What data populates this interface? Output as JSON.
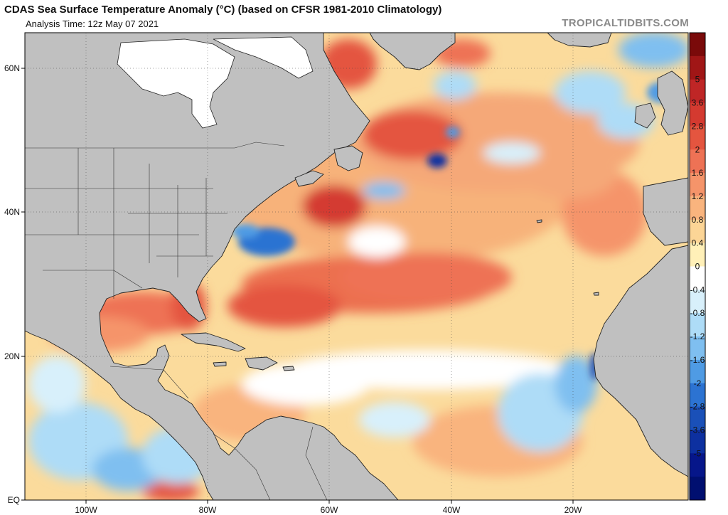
{
  "header": {
    "title": "CDAS Sea Surface Temperature Anomaly (°C) (based on CFSR 1981-2010 Climatology)",
    "analysis_time": "Analysis Time: 12z May 07 2021",
    "credit": "TROPICALTIDBITS.COM"
  },
  "map": {
    "lat_labels": [
      "60N",
      "40N",
      "20N",
      "EQ"
    ],
    "lon_labels": [
      "100W",
      "80W",
      "60W",
      "40W",
      "20W"
    ],
    "land_color": "#c0c0c0",
    "ice_color": "#ffffff"
  },
  "colorbar": {
    "labels": [
      "5",
      "3.6",
      "2.8",
      "2",
      "1.6",
      "1.2",
      "0.8",
      "0.4",
      "0",
      "-0.4",
      "-0.8",
      "-1.2",
      "-1.6",
      "-2",
      "-2.8",
      "-3.6",
      "-5"
    ],
    "colors": [
      "#7a0a0a",
      "#a01616",
      "#bf2626",
      "#d43a30",
      "#e4553f",
      "#ee7255",
      "#f5946a",
      "#f9b47e",
      "#fcd596",
      "#fff0b8",
      "#ffffff",
      "#d8f0fb",
      "#aedcf7",
      "#7fbff0",
      "#4f9be4",
      "#2c73d2",
      "#1a50b8",
      "#0d30a0",
      "#06168a",
      "#000f70"
    ]
  }
}
